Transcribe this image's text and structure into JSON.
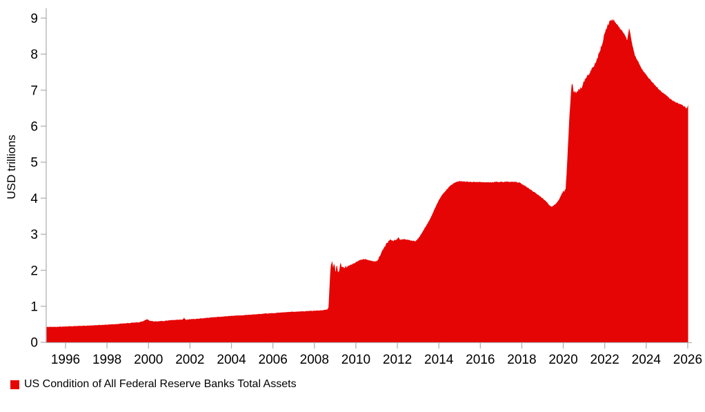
{
  "page": {
    "background": "#ffffff"
  },
  "chart_data": {
    "type": "area",
    "title": "",
    "xlabel": "",
    "ylabel": "USD trillions",
    "legend": "US Condition of All Federal Reserve Banks Total Assets",
    "series_color": "#e60505",
    "axis_color": "#b0b0b0",
    "text_color": "#000000",
    "grid": "off",
    "legend_position": "bottom-left",
    "x_range": [
      1995.05,
      2026.05
    ],
    "ylim": [
      0,
      9
    ],
    "y_ticks": [
      0,
      1,
      2,
      3,
      4,
      5,
      6,
      7,
      8,
      9
    ],
    "x_ticks": [
      1996,
      1998,
      2000,
      2002,
      2004,
      2006,
      2008,
      2010,
      2012,
      2014,
      2016,
      2018,
      2020,
      2022,
      2024,
      2026
    ],
    "units": "USD trillions",
    "points": [
      [
        1995.05,
        0.425
      ],
      [
        1995.5,
        0.43
      ],
      [
        1996,
        0.44
      ],
      [
        1996.5,
        0.45
      ],
      [
        1997,
        0.46
      ],
      [
        1997.5,
        0.475
      ],
      [
        1998,
        0.49
      ],
      [
        1998.5,
        0.51
      ],
      [
        1999,
        0.53
      ],
      [
        1999.6,
        0.56
      ],
      [
        1999.95,
        0.64
      ],
      [
        2000.05,
        0.6
      ],
      [
        2000.3,
        0.58
      ],
      [
        2000.7,
        0.59
      ],
      [
        2001,
        0.61
      ],
      [
        2001.65,
        0.63
      ],
      [
        2001.72,
        0.68
      ],
      [
        2001.8,
        0.62
      ],
      [
        2002,
        0.64
      ],
      [
        2002.5,
        0.66
      ],
      [
        2003,
        0.69
      ],
      [
        2003.5,
        0.71
      ],
      [
        2004,
        0.735
      ],
      [
        2004.5,
        0.75
      ],
      [
        2005,
        0.77
      ],
      [
        2005.5,
        0.79
      ],
      [
        2006,
        0.81
      ],
      [
        2006.5,
        0.83
      ],
      [
        2007,
        0.85
      ],
      [
        2007.5,
        0.86
      ],
      [
        2008,
        0.875
      ],
      [
        2008.4,
        0.89
      ],
      [
        2008.62,
        0.91
      ],
      [
        2008.68,
        0.95
      ],
      [
        2008.73,
        1.6
      ],
      [
        2008.79,
        2.15
      ],
      [
        2008.85,
        2.28
      ],
      [
        2008.9,
        2.1
      ],
      [
        2008.96,
        2.2
      ],
      [
        2009.02,
        1.95
      ],
      [
        2009.08,
        2.18
      ],
      [
        2009.14,
        1.92
      ],
      [
        2009.2,
        2.02
      ],
      [
        2009.26,
        2.18
      ],
      [
        2009.32,
        2.1
      ],
      [
        2009.4,
        2.06
      ],
      [
        2009.5,
        2.1
      ],
      [
        2009.65,
        2.12
      ],
      [
        2009.8,
        2.16
      ],
      [
        2010,
        2.22
      ],
      [
        2010.15,
        2.27
      ],
      [
        2010.3,
        2.31
      ],
      [
        2010.5,
        2.3
      ],
      [
        2010.7,
        2.27
      ],
      [
        2010.9,
        2.24
      ],
      [
        2011.05,
        2.28
      ],
      [
        2011.2,
        2.45
      ],
      [
        2011.35,
        2.62
      ],
      [
        2011.5,
        2.76
      ],
      [
        2011.65,
        2.85
      ],
      [
        2011.8,
        2.82
      ],
      [
        2011.95,
        2.85
      ],
      [
        2012.05,
        2.9
      ],
      [
        2012.15,
        2.85
      ],
      [
        2012.3,
        2.86
      ],
      [
        2012.5,
        2.85
      ],
      [
        2012.7,
        2.82
      ],
      [
        2012.85,
        2.8
      ],
      [
        2013,
        2.87
      ],
      [
        2013.2,
        3.05
      ],
      [
        2013.4,
        3.25
      ],
      [
        2013.6,
        3.45
      ],
      [
        2013.8,
        3.7
      ],
      [
        2014,
        3.95
      ],
      [
        2014.2,
        4.12
      ],
      [
        2014.4,
        4.26
      ],
      [
        2014.6,
        4.37
      ],
      [
        2014.8,
        4.44
      ],
      [
        2015,
        4.47
      ],
      [
        2015.3,
        4.46
      ],
      [
        2015.6,
        4.45
      ],
      [
        2016,
        4.45
      ],
      [
        2016.4,
        4.44
      ],
      [
        2016.8,
        4.45
      ],
      [
        2017.2,
        4.45
      ],
      [
        2017.6,
        4.46
      ],
      [
        2017.9,
        4.43
      ],
      [
        2018.1,
        4.36
      ],
      [
        2018.4,
        4.25
      ],
      [
        2018.7,
        4.13
      ],
      [
        2019,
        4.0
      ],
      [
        2019.2,
        3.9
      ],
      [
        2019.4,
        3.76
      ],
      [
        2019.5,
        3.78
      ],
      [
        2019.65,
        3.85
      ],
      [
        2019.8,
        3.97
      ],
      [
        2019.95,
        4.16
      ],
      [
        2020.05,
        4.2
      ],
      [
        2020.12,
        4.3
      ],
      [
        2020.18,
        4.9
      ],
      [
        2020.24,
        5.6
      ],
      [
        2020.3,
        6.3
      ],
      [
        2020.35,
        6.75
      ],
      [
        2020.4,
        7.1
      ],
      [
        2020.44,
        7.17
      ],
      [
        2020.5,
        6.97
      ],
      [
        2020.62,
        6.93
      ],
      [
        2020.75,
        7.0
      ],
      [
        2020.9,
        7.1
      ],
      [
        2021.05,
        7.3
      ],
      [
        2021.2,
        7.42
      ],
      [
        2021.35,
        7.55
      ],
      [
        2021.5,
        7.72
      ],
      [
        2021.65,
        7.9
      ],
      [
        2021.8,
        8.15
      ],
      [
        2021.9,
        8.35
      ],
      [
        2022,
        8.6
      ],
      [
        2022.1,
        8.75
      ],
      [
        2022.2,
        8.87
      ],
      [
        2022.33,
        8.96
      ],
      [
        2022.45,
        8.92
      ],
      [
        2022.6,
        8.82
      ],
      [
        2022.75,
        8.7
      ],
      [
        2022.9,
        8.6
      ],
      [
        2023.0,
        8.5
      ],
      [
        2023.08,
        8.37
      ],
      [
        2023.14,
        8.6
      ],
      [
        2023.18,
        8.73
      ],
      [
        2023.25,
        8.5
      ],
      [
        2023.35,
        8.2
      ],
      [
        2023.45,
        7.97
      ],
      [
        2023.6,
        7.8
      ],
      [
        2023.8,
        7.58
      ],
      [
        2024,
        7.42
      ],
      [
        2024.2,
        7.28
      ],
      [
        2024.4,
        7.15
      ],
      [
        2024.6,
        7.03
      ],
      [
        2024.8,
        6.93
      ],
      [
        2025,
        6.84
      ],
      [
        2025.2,
        6.74
      ],
      [
        2025.4,
        6.67
      ],
      [
        2025.6,
        6.62
      ],
      [
        2025.75,
        6.58
      ],
      [
        2025.88,
        6.53
      ],
      [
        2025.95,
        6.48
      ],
      [
        2026.02,
        6.6
      ]
    ],
    "noise_bands": [
      [
        1995.0,
        2008.6,
        0.008
      ],
      [
        2008.6,
        2009.6,
        0.04
      ],
      [
        2009.6,
        2011.0,
        0.015
      ],
      [
        2011.0,
        2013.0,
        0.018
      ],
      [
        2013.0,
        2019.9,
        0.012
      ],
      [
        2019.9,
        2022.5,
        0.04
      ],
      [
        2022.5,
        2026.1,
        0.015
      ]
    ]
  }
}
